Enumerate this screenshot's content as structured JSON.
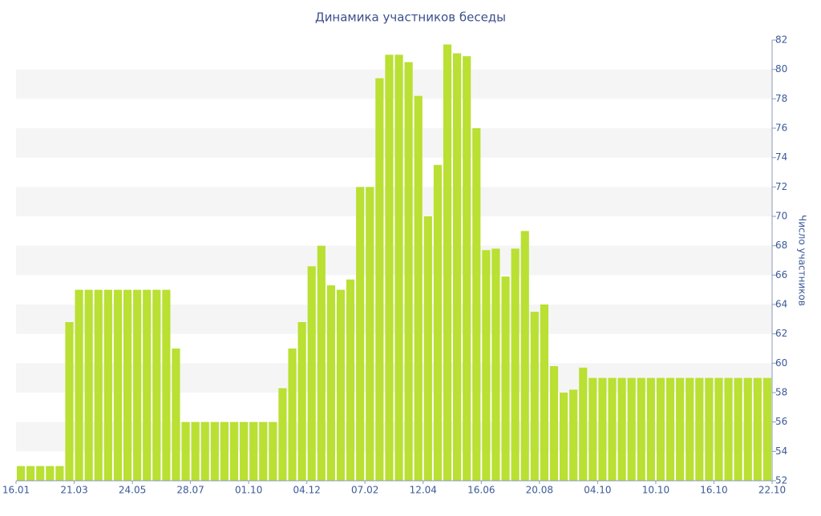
{
  "chart_data": {
    "type": "bar",
    "title": "Динамика участников беседы",
    "y_label": "Число участников",
    "values": [
      53,
      53,
      53,
      53,
      53,
      62.8,
      65,
      65,
      65,
      65,
      65,
      65,
      65,
      65,
      65,
      65,
      61,
      56,
      56,
      56,
      56,
      56,
      56,
      56,
      56,
      56,
      56,
      58.3,
      61,
      62.8,
      66.6,
      68,
      65.3,
      65,
      65.7,
      72,
      72,
      79.4,
      81,
      81,
      80.5,
      78.2,
      70,
      73.5,
      81.7,
      81.1,
      80.9,
      76,
      67.7,
      67.8,
      65.9,
      67.8,
      69,
      63.5,
      64,
      59.8,
      58,
      58.2,
      59.7,
      59,
      59,
      59,
      59,
      59,
      59,
      59,
      59,
      59,
      59,
      59,
      59,
      59,
      59,
      59,
      59,
      59,
      59,
      59
    ],
    "xtick_labels": [
      "16.01",
      "21.03",
      "24.05",
      "28.07",
      "01.10",
      "04.12",
      "07.02",
      "12.04",
      "16.06",
      "20.08",
      "04.10",
      "10.10",
      "16.10",
      "22.10"
    ],
    "color": "#b9e032",
    "ylim": [
      52,
      82
    ],
    "yticks": [
      52,
      54,
      56,
      58,
      60,
      62,
      64,
      66,
      68,
      70,
      72,
      74,
      76,
      78,
      80,
      82
    ],
    "bands": true
  }
}
